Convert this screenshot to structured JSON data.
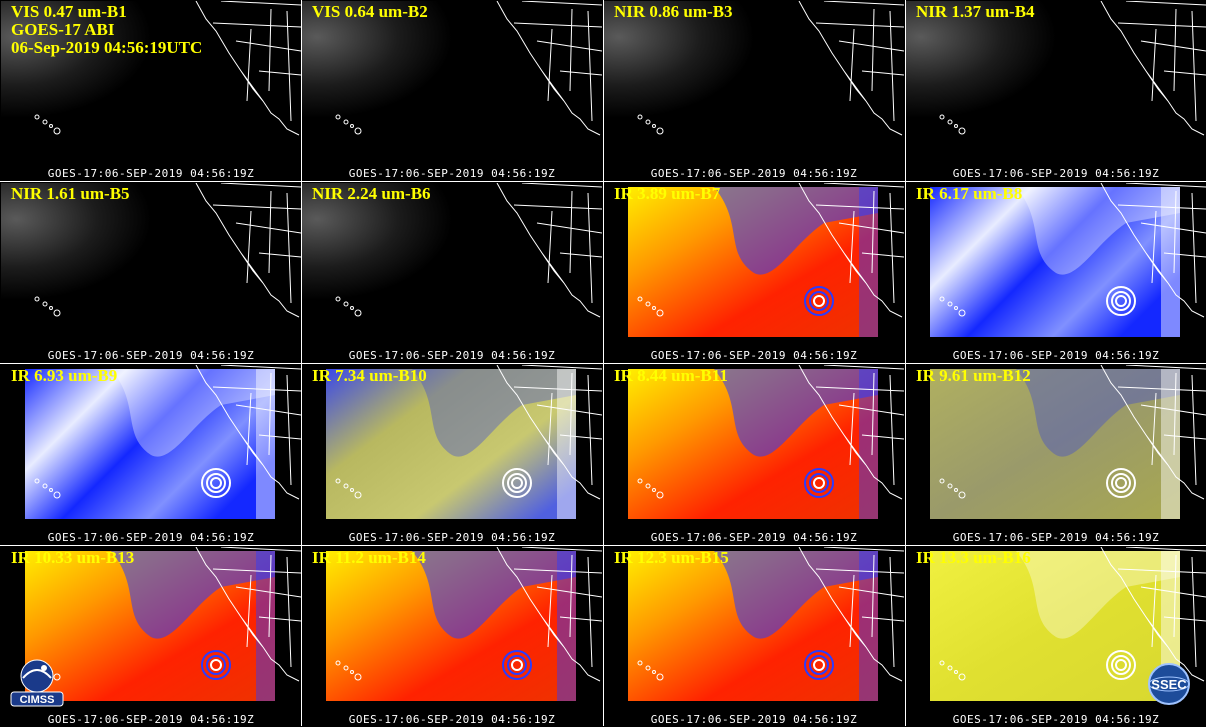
{
  "header": {
    "satellite": "GOES-17 ABI",
    "datetime": "06-Sep-2019 04:56:19UTC"
  },
  "timestamp": "GOES-17:06-SEP-2019  04:56:19Z",
  "panels": [
    {
      "label": "VIS 0.47 um-B1",
      "scheme": "vis"
    },
    {
      "label": "VIS 0.64 um-B2",
      "scheme": "vis"
    },
    {
      "label": "NIR 0.86 um-B3",
      "scheme": "vis"
    },
    {
      "label": "NIR 1.37 um-B4",
      "scheme": "vis"
    },
    {
      "label": "NIR 1.61 um-B5",
      "scheme": "vis"
    },
    {
      "label": "NIR 2.24 um-B6",
      "scheme": "vis"
    },
    {
      "label": "IR 3.89 um-B7",
      "scheme": "ir"
    },
    {
      "label": "IR 6.17 um-B8",
      "scheme": "wv"
    },
    {
      "label": "IR 6.93 um-B9",
      "scheme": "wv"
    },
    {
      "label": "IR 7.34 um-B10",
      "scheme": "wv10"
    },
    {
      "label": "IR 8.44 um-B11",
      "scheme": "ir"
    },
    {
      "label": "IR 9.61 um-B12",
      "scheme": "oz"
    },
    {
      "label": "IR 10.33 um-B13",
      "scheme": "ir"
    },
    {
      "label": "IR 11.2 um-B14",
      "scheme": "ir"
    },
    {
      "label": "IR 12.3 um-B15",
      "scheme": "ir"
    },
    {
      "label": "IR 13.3 um-B16",
      "scheme": "co2"
    }
  ],
  "logos": {
    "left": "CIMSS",
    "right": "SSEC"
  },
  "colors": {
    "label": "#ffff00",
    "ir_warm": "#ff2200",
    "ir_mid": "#ff9900",
    "ir_cool": "#ffee00",
    "cold_cloud": "#2a3cff",
    "wv_dry": "#1428ff",
    "wv_moist": "#e8ecff",
    "wv10_mid": "#b8b860",
    "co2_mid": "#e0e030",
    "oz_mid": "#9a9a6a"
  }
}
